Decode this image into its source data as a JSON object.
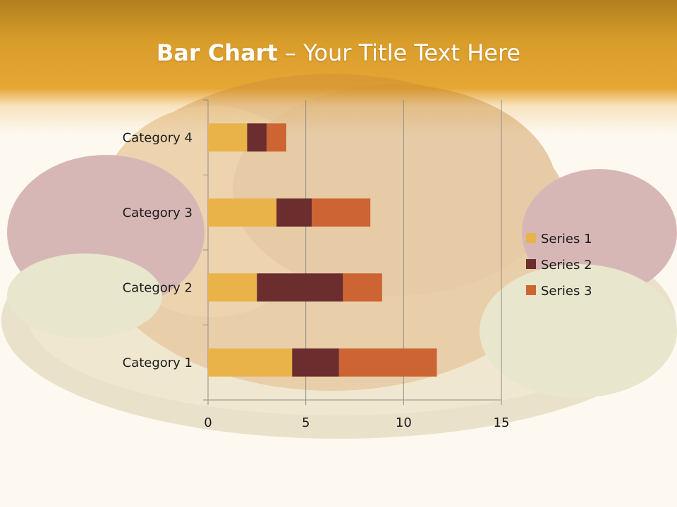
{
  "slide": {
    "title_bold": "Bar Chart",
    "title_dash": " – ",
    "title_rest": "Your Title Text Here"
  },
  "chart_data": {
    "type": "bar",
    "orientation": "horizontal",
    "stacked": true,
    "categories": [
      "Category 1",
      "Category 2",
      "Category 3",
      "Category 4"
    ],
    "series": [
      {
        "name": "Series 1",
        "values": [
          4.3,
          2.5,
          3.5,
          2.0
        ],
        "color": "#e9b34a"
      },
      {
        "name": "Series 2",
        "values": [
          2.4,
          4.4,
          1.8,
          1.0
        ],
        "color": "#6b2d2d"
      },
      {
        "name": "Series 3",
        "values": [
          5.0,
          2.0,
          3.0,
          1.0
        ],
        "color": "#cc6433"
      }
    ],
    "xlim": [
      0,
      15
    ],
    "x_ticks": [
      0,
      5,
      10,
      15
    ],
    "grid": "vertical",
    "legend": "right"
  }
}
